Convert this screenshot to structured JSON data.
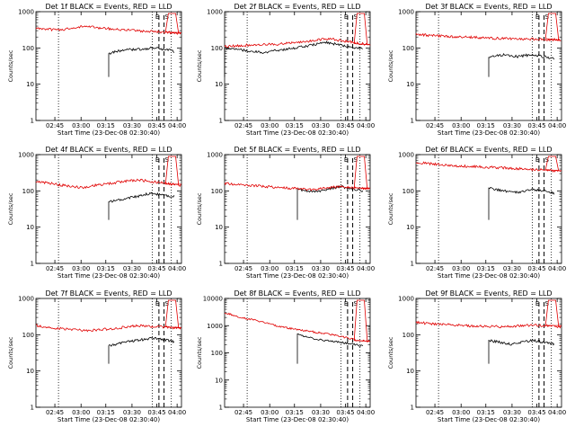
{
  "figure": {
    "title_template": "{det} BLACK = Events, RED = LLD",
    "xlabel": "Start Time (23-Dec-08 02:30:40)",
    "ylabel": "Counts/sec",
    "x_tick_labels": [
      "02:45",
      "03:00",
      "03:15",
      "03:30",
      "03:45",
      "04:00"
    ],
    "annotations": [
      "E",
      "S"
    ],
    "colors": {
      "events": "#000000",
      "lld": "#e00000",
      "axes": "#000000"
    }
  },
  "chart_data": [
    {
      "type": "line",
      "title": "Det 1f BLACK = Events, RED = LLD",
      "xlabel": "Start Time (23-Dec-08 02:30:40)",
      "ylabel": "Counts/sec",
      "yscale": "log",
      "ylim": [
        1,
        1000
      ],
      "y_tick_labels": [
        "1",
        "10",
        "100",
        "1000"
      ],
      "xlim": [
        0,
        100
      ],
      "x": [
        0,
        5,
        10,
        15,
        20,
        25,
        30,
        35,
        40,
        45,
        50,
        55,
        60,
        65,
        70,
        75,
        80,
        85,
        90,
        95,
        100
      ],
      "series": [
        {
          "name": "Events",
          "color": "#000000",
          "start_x": 9,
          "end_x": 77,
          "values": [
            null,
            null,
            null,
            null,
            null,
            null,
            null,
            null,
            null,
            null,
            70,
            80,
            88,
            90,
            92,
            93,
            100,
            95,
            90,
            80,
            null
          ]
        },
        {
          "name": "LLD",
          "color": "#e00000",
          "values": [
            350,
            340,
            320,
            310,
            330,
            360,
            380,
            390,
            370,
            350,
            340,
            330,
            320,
            310,
            300,
            290,
            285,
            280,
            270,
            260,
            250
          ]
        }
      ]
    },
    {
      "type": "line",
      "title": "Det 2f BLACK = Events, RED = LLD",
      "xlabel": "Start Time (23-Dec-08 02:30:40)",
      "ylabel": "Counts/sec",
      "yscale": "log",
      "ylim": [
        1,
        1000
      ],
      "y_tick_labels": [
        "1",
        "10",
        "100",
        "1000"
      ],
      "xlim": [
        0,
        100
      ],
      "x": [
        0,
        5,
        10,
        15,
        20,
        25,
        30,
        35,
        40,
        45,
        50,
        55,
        60,
        65,
        70,
        75,
        80,
        85,
        90,
        95,
        100
      ],
      "series": [
        {
          "name": "Events",
          "color": "#000000",
          "start_x": 0,
          "end_x": 77,
          "values": [
            100,
            95,
            90,
            85,
            80,
            75,
            78,
            85,
            90,
            95,
            100,
            110,
            120,
            130,
            140,
            130,
            120,
            110,
            100,
            95,
            null
          ]
        },
        {
          "name": "LLD",
          "color": "#e00000",
          "values": [
            110,
            112,
            115,
            118,
            120,
            122,
            125,
            128,
            130,
            135,
            140,
            150,
            160,
            170,
            180,
            170,
            160,
            150,
            140,
            130,
            120
          ]
        }
      ]
    },
    {
      "type": "line",
      "title": "Det 3f BLACK = Events, RED = LLD",
      "xlabel": "Start Time (23-Dec-08 02:30:40)",
      "ylabel": "Counts/sec",
      "yscale": "log",
      "ylim": [
        1,
        1000
      ],
      "y_tick_labels": [
        "1",
        "10",
        "100",
        "1000"
      ],
      "xlim": [
        0,
        100
      ],
      "x": [
        0,
        5,
        10,
        15,
        20,
        25,
        30,
        35,
        40,
        45,
        50,
        55,
        60,
        65,
        70,
        75,
        80,
        85,
        90,
        95,
        100
      ],
      "series": [
        {
          "name": "Events",
          "color": "#000000",
          "start_x": 10,
          "end_x": 77,
          "values": [
            null,
            null,
            null,
            null,
            null,
            null,
            null,
            null,
            null,
            null,
            55,
            60,
            65,
            60,
            58,
            62,
            65,
            60,
            55,
            50,
            null
          ]
        },
        {
          "name": "LLD",
          "color": "#e00000",
          "values": [
            240,
            230,
            220,
            215,
            210,
            205,
            200,
            198,
            195,
            190,
            188,
            185,
            182,
            180,
            178,
            176,
            174,
            172,
            170,
            168,
            165
          ]
        }
      ]
    },
    {
      "type": "line",
      "title": "Det 4f BLACK = Events, RED = LLD",
      "xlabel": "Start Time (23-Dec-08 02:30:40)",
      "ylabel": "Counts/sec",
      "yscale": "log",
      "ylim": [
        1,
        1000
      ],
      "y_tick_labels": [
        "1",
        "10",
        "100",
        "1000"
      ],
      "xlim": [
        0,
        100
      ],
      "x": [
        0,
        5,
        10,
        15,
        20,
        25,
        30,
        35,
        40,
        45,
        50,
        55,
        60,
        65,
        70,
        75,
        80,
        85,
        90,
        95,
        100
      ],
      "series": [
        {
          "name": "Events",
          "color": "#000000",
          "start_x": 10,
          "end_x": 77,
          "values": [
            null,
            null,
            null,
            null,
            null,
            null,
            null,
            null,
            null,
            null,
            50,
            55,
            60,
            65,
            70,
            80,
            85,
            80,
            75,
            70,
            null
          ]
        },
        {
          "name": "LLD",
          "color": "#e00000",
          "values": [
            180,
            170,
            160,
            150,
            140,
            130,
            125,
            130,
            140,
            150,
            160,
            170,
            180,
            190,
            200,
            190,
            180,
            170,
            160,
            150,
            140
          ]
        }
      ]
    },
    {
      "type": "line",
      "title": "Det 5f BLACK = Events, RED = LLD",
      "xlabel": "Start Time (23-Dec-08 02:30:40)",
      "ylabel": "Counts/sec",
      "yscale": "log",
      "ylim": [
        1,
        1000
      ],
      "y_tick_labels": [
        "1",
        "10",
        "100",
        "1000"
      ],
      "xlim": [
        0,
        100
      ],
      "x": [
        0,
        5,
        10,
        15,
        20,
        25,
        30,
        35,
        40,
        45,
        50,
        55,
        60,
        65,
        70,
        75,
        80,
        85,
        90,
        95,
        100
      ],
      "series": [
        {
          "name": "Events",
          "color": "#000000",
          "start_x": 10,
          "end_x": 77,
          "values": [
            null,
            null,
            null,
            null,
            null,
            null,
            null,
            null,
            null,
            null,
            110,
            100,
            95,
            100,
            110,
            120,
            130,
            120,
            110,
            100,
            null
          ]
        },
        {
          "name": "LLD",
          "color": "#e00000",
          "values": [
            160,
            155,
            150,
            145,
            140,
            135,
            130,
            125,
            120,
            118,
            115,
            112,
            110,
            115,
            120,
            125,
            130,
            125,
            120,
            115,
            110
          ]
        }
      ]
    },
    {
      "type": "line",
      "title": "Det 6f BLACK = Events, RED = LLD",
      "xlabel": "Start Time (23-Dec-08 02:30:40)",
      "ylabel": "Counts/sec",
      "yscale": "log",
      "ylim": [
        1,
        1000
      ],
      "y_tick_labels": [
        "1",
        "10",
        "100",
        "1000"
      ],
      "xlim": [
        0,
        100
      ],
      "x": [
        0,
        5,
        10,
        15,
        20,
        25,
        30,
        35,
        40,
        45,
        50,
        55,
        60,
        65,
        70,
        75,
        80,
        85,
        90,
        95,
        100
      ],
      "series": [
        {
          "name": "Events",
          "color": "#000000",
          "start_x": 10,
          "end_x": 77,
          "values": [
            null,
            null,
            null,
            null,
            null,
            null,
            null,
            null,
            null,
            null,
            120,
            110,
            100,
            95,
            90,
            100,
            110,
            105,
            95,
            85,
            null
          ]
        },
        {
          "name": "LLD",
          "color": "#e00000",
          "values": [
            600,
            580,
            560,
            540,
            520,
            500,
            490,
            480,
            470,
            460,
            450,
            440,
            430,
            420,
            410,
            400,
            390,
            380,
            370,
            360,
            350
          ]
        }
      ]
    },
    {
      "type": "line",
      "title": "Det 7f BLACK = Events, RED = LLD",
      "xlabel": "Start Time (23-Dec-08 02:30:40)",
      "ylabel": "Counts/sec",
      "yscale": "log",
      "ylim": [
        1,
        1000
      ],
      "y_tick_labels": [
        "1",
        "10",
        "100",
        "1000"
      ],
      "xlim": [
        0,
        100
      ],
      "x": [
        0,
        5,
        10,
        15,
        20,
        25,
        30,
        35,
        40,
        45,
        50,
        55,
        60,
        65,
        70,
        75,
        80,
        85,
        90,
        95,
        100
      ],
      "series": [
        {
          "name": "Events",
          "color": "#000000",
          "start_x": 10,
          "end_x": 77,
          "values": [
            null,
            null,
            null,
            null,
            null,
            null,
            null,
            null,
            null,
            null,
            50,
            55,
            60,
            65,
            70,
            75,
            80,
            75,
            70,
            65,
            null
          ]
        },
        {
          "name": "LLD",
          "color": "#e00000",
          "values": [
            180,
            170,
            160,
            150,
            145,
            140,
            135,
            130,
            135,
            140,
            145,
            150,
            160,
            170,
            180,
            175,
            170,
            165,
            160,
            155,
            150
          ]
        }
      ]
    },
    {
      "type": "line",
      "title": "Det 8f BLACK = Events, RED = LLD",
      "xlabel": "Start Time (23-Dec-08 02:30:40)",
      "ylabel": "Counts/sec",
      "yscale": "log",
      "ylim": [
        1,
        10000
      ],
      "y_tick_labels": [
        "1",
        "10",
        "100",
        "1000",
        "10000"
      ],
      "xlim": [
        0,
        100
      ],
      "x": [
        0,
        5,
        10,
        15,
        20,
        25,
        30,
        35,
        40,
        45,
        50,
        55,
        60,
        65,
        70,
        75,
        80,
        85,
        90,
        95,
        100
      ],
      "series": [
        {
          "name": "Events",
          "color": "#000000",
          "start_x": 10,
          "end_x": 77,
          "values": [
            null,
            null,
            null,
            null,
            null,
            null,
            null,
            null,
            null,
            null,
            500,
            400,
            350,
            300,
            280,
            260,
            240,
            220,
            200,
            180,
            null
          ]
        },
        {
          "name": "LLD",
          "color": "#e00000",
          "values": [
            3000,
            2500,
            2000,
            1800,
            1600,
            1400,
            1200,
            1000,
            900,
            800,
            700,
            650,
            600,
            550,
            500,
            450,
            400,
            350,
            300,
            280,
            260
          ]
        }
      ]
    },
    {
      "type": "line",
      "title": "Det 9f BLACK = Events, RED = LLD",
      "xlabel": "Start Time (23-Dec-08 02:30:40)",
      "ylabel": "Counts/sec",
      "yscale": "log",
      "ylim": [
        1,
        1000
      ],
      "y_tick_labels": [
        "1",
        "10",
        "100",
        "1000"
      ],
      "xlim": [
        0,
        100
      ],
      "x": [
        0,
        5,
        10,
        15,
        20,
        25,
        30,
        35,
        40,
        45,
        50,
        55,
        60,
        65,
        70,
        75,
        80,
        85,
        90,
        95,
        100
      ],
      "series": [
        {
          "name": "Events",
          "color": "#000000",
          "start_x": 10,
          "end_x": 77,
          "values": [
            null,
            null,
            null,
            null,
            null,
            null,
            null,
            null,
            null,
            null,
            70,
            65,
            60,
            55,
            60,
            65,
            70,
            65,
            60,
            55,
            null
          ]
        },
        {
          "name": "LLD",
          "color": "#e00000",
          "values": [
            220,
            210,
            200,
            195,
            190,
            185,
            180,
            178,
            175,
            172,
            170,
            168,
            165,
            170,
            175,
            180,
            185,
            180,
            175,
            170,
            165
          ]
        }
      ]
    }
  ]
}
